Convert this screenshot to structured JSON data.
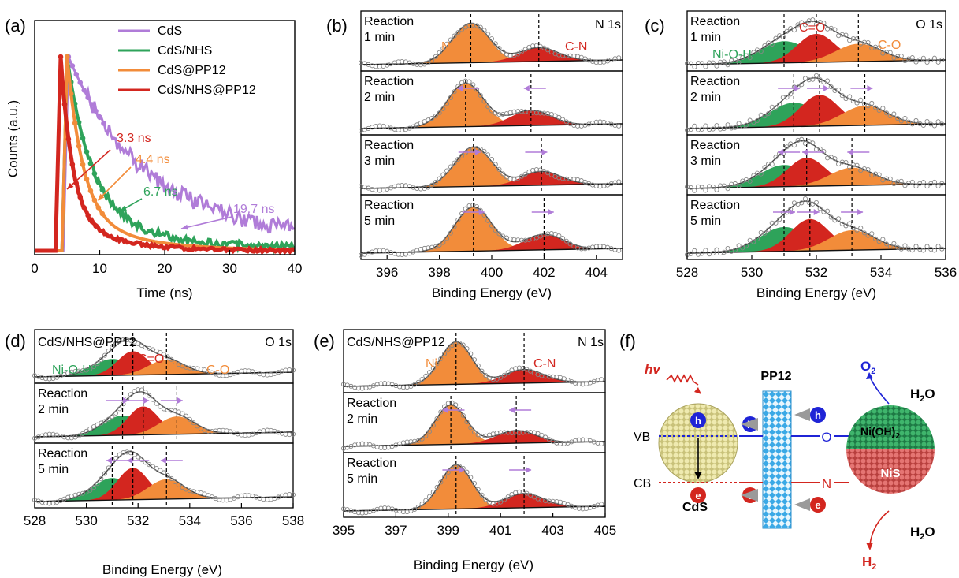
{
  "colors": {
    "orange": "#F28C3A",
    "red": "#D3261F",
    "green": "#2EA35A",
    "purple": "#B07CD8",
    "blue": "#1F24D6",
    "bead": "#E6E0A0",
    "nis": "#D9605E",
    "nioh": "#2F9A5C",
    "pp": "#7CC6F0"
  },
  "panel_a": {
    "label": "(a)",
    "chart_data": {
      "type": "line",
      "xlabel": "Time (ns)",
      "ylabel": "Counts (a.u.)",
      "xlim": [
        0,
        40
      ],
      "xticks": [
        0,
        10,
        20,
        30,
        40
      ],
      "series": [
        {
          "name": "CdS",
          "color": "#B07CD8",
          "tau": 19.7,
          "annotation": "19.7 ns"
        },
        {
          "name": "CdS/NHS",
          "color": "#2EA35A",
          "tau": 6.7,
          "annotation": "6.7 ns"
        },
        {
          "name": "CdS@PP12",
          "color": "#F28C3A",
          "tau": 4.4,
          "annotation": "4.4 ns"
        },
        {
          "name": "CdS/NHS@PP12",
          "color": "#D3261F",
          "tau": 3.3,
          "annotation": "3.3 ns"
        }
      ]
    }
  },
  "panel_b": {
    "label": "(b)",
    "corner": "N 1s",
    "peak1": "Ni-N",
    "peak2": "C-N",
    "chart_data": {
      "type": "area",
      "xlabel": "Binding Energy (eV)",
      "xlim": [
        395,
        405
      ],
      "xticks": [
        396,
        398,
        400,
        402,
        404
      ],
      "subpanels": [
        {
          "label1": "Reaction",
          "label2": "1 min",
          "peaks": [
            399.2,
            401.8
          ]
        },
        {
          "label1": "Reaction",
          "label2": "2 min",
          "peaks": [
            399.0,
            401.5
          ]
        },
        {
          "label1": "Reaction",
          "label2": "3 min",
          "peaks": [
            399.3,
            401.9
          ]
        },
        {
          "label1": "Reaction",
          "label2": "5 min",
          "peaks": [
            399.3,
            402.0
          ]
        }
      ]
    }
  },
  "panel_c": {
    "label": "(c)",
    "corner": "O 1s",
    "peak1": "Ni-O-H",
    "peak2": "C=O",
    "peak3": "C-O",
    "chart_data": {
      "type": "area",
      "xlabel": "Binding Energy (eV)",
      "xlim": [
        528,
        536
      ],
      "xticks": [
        528,
        530,
        532,
        534,
        536
      ],
      "subpanels": [
        {
          "label1": "Reaction",
          "label2": "1 min",
          "peaks": [
            531.0,
            532.0,
            533.3
          ]
        },
        {
          "label1": "Reaction",
          "label2": "2 min",
          "peaks": [
            531.3,
            532.1,
            533.5
          ]
        },
        {
          "label1": "Reaction",
          "label2": "3 min",
          "peaks": [
            531.0,
            531.7,
            533.1
          ]
        },
        {
          "label1": "Reaction",
          "label2": "5 min",
          "peaks": [
            531.0,
            531.8,
            533.1
          ]
        }
      ]
    }
  },
  "panel_d": {
    "label": "(d)",
    "corner": "O 1s",
    "title": "CdS/NHS@PP12",
    "peak1": "Ni-O-H",
    "peak2": "C=O",
    "peak3": "C-O",
    "chart_data": {
      "type": "area",
      "xlabel": "Binding Energy (eV)",
      "xlim": [
        528,
        538
      ],
      "xticks": [
        528,
        530,
        532,
        534,
        536,
        538
      ],
      "subpanels": [
        {
          "label1": "",
          "label2": "",
          "peaks": [
            531.0,
            531.8,
            533.1
          ]
        },
        {
          "label1": "Reaction",
          "label2": "2 min",
          "peaks": [
            531.4,
            532.2,
            533.5
          ]
        },
        {
          "label1": "Reaction",
          "label2": "5 min",
          "peaks": [
            531.0,
            531.8,
            533.1
          ]
        }
      ]
    }
  },
  "panel_e": {
    "label": "(e)",
    "corner": "N 1s",
    "title": "CdS/NHS@PP12",
    "peak1": "Ni-N",
    "peak2": "C-N",
    "chart_data": {
      "type": "area",
      "xlabel": "Binding Energy (eV)",
      "xlim": [
        395,
        405
      ],
      "xticks": [
        395,
        397,
        399,
        401,
        403,
        405
      ],
      "subpanels": [
        {
          "label1": "",
          "label2": "",
          "peaks": [
            399.3,
            401.9
          ]
        },
        {
          "label1": "Reaction",
          "label2": "2 min",
          "peaks": [
            399.1,
            401.6
          ]
        },
        {
          "label1": "Reaction",
          "label2": "5 min",
          "peaks": [
            399.3,
            401.9
          ]
        }
      ]
    }
  },
  "panel_f": {
    "label": "(f)",
    "hv": "hv",
    "pp12": "PP12",
    "vb": "VB",
    "cb": "CB",
    "cds": "CdS",
    "nioh": "Ni(OH)",
    "nioh_sub": "2",
    "nis": "NiS",
    "o2": "O",
    "o2_sub": "2",
    "h2": "H",
    "h2_sub": "2",
    "h2o": "H",
    "h2o_sub": "2",
    "h2o_o": "O",
    "o_link": "O",
    "n_link": "N",
    "h": "h",
    "e": "e"
  }
}
